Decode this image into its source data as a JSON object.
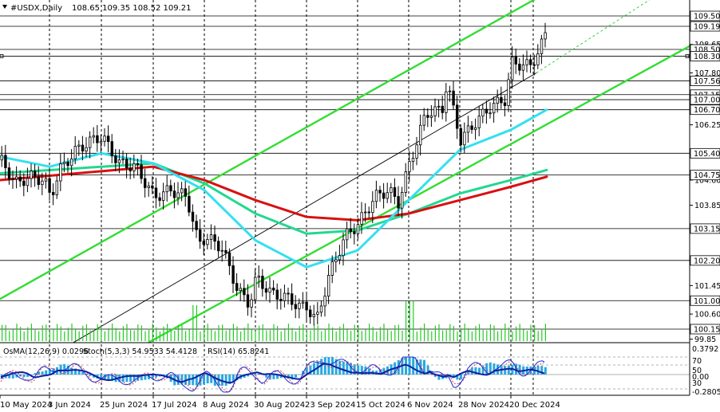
{
  "header": {
    "symbol": "#USDX,Daily",
    "ohlc": "108.65 109.35 108.52 109.21"
  },
  "colors": {
    "candles": "#000000",
    "ma_fast": "#33e0f0",
    "ma_mid": "#22d890",
    "ma_slow": "#d81010",
    "channel": "#33dd33",
    "channel_mid": "#000000",
    "grid": "#000000",
    "osma_hist": "#2aa8e0",
    "stoch_main": "#1a2bd8",
    "stoch_signal": "#e03030",
    "rsi": "#1020a0"
  },
  "chart_data": {
    "type": "candlestick",
    "instrument": "#USDX",
    "timeframe": "Daily",
    "last_ohlc": {
      "open": 108.65,
      "high": 109.35,
      "low": 108.52,
      "close": 109.21
    },
    "ylim": [
      99.85,
      110.1
    ],
    "price_labels": [
      "109.50",
      "109.19",
      "108.50",
      "108.30",
      "107.56",
      "107.15",
      "107.00",
      "106.70",
      "105.40",
      "104.75",
      "103.15",
      "102.20",
      "101.00",
      "100.15"
    ],
    "price_ticks": [
      "108.65",
      "107.80",
      "106.25",
      "104.60",
      "103.85",
      "101.45",
      "100.60",
      "99.85"
    ],
    "date_labels": [
      "10 May 2024",
      "3 Jun 2024",
      "25 Jun 2024",
      "17 Jul 2024",
      "8 Aug 2024",
      "30 Aug 2024",
      "23 Sep 2024",
      "15 Oct 2024",
      "6 Nov 2024",
      "28 Nov 2024",
      "20 Dec 2024"
    ],
    "close_path": [
      [
        "10 May 2024",
        105.2
      ],
      [
        "17 May 2024",
        104.5
      ],
      [
        "24 May 2024",
        104.7
      ],
      [
        "31 May 2024",
        104.6
      ],
      [
        "3 Jun 2024",
        104.1
      ],
      [
        "7 Jun 2024",
        104.9
      ],
      [
        "14 Jun 2024",
        105.5
      ],
      [
        "21 Jun 2024",
        105.8
      ],
      [
        "25 Jun 2024",
        105.9
      ],
      [
        "2 Jul 2024",
        105.1
      ],
      [
        "9 Jul 2024",
        105.0
      ],
      [
        "17 Jul 2024",
        104.1
      ],
      [
        "24 Jul 2024",
        104.3
      ],
      [
        "31 Jul 2024",
        104.1
      ],
      [
        "5 Aug 2024",
        102.7
      ],
      [
        "8 Aug 2024",
        102.9
      ],
      [
        "15 Aug 2024",
        102.6
      ],
      [
        "22 Aug 2024",
        101.3
      ],
      [
        "27 Aug 2024",
        100.9
      ],
      [
        "30 Aug 2024",
        101.7
      ],
      [
        "6 Sep 2024",
        101.2
      ],
      [
        "13 Sep 2024",
        101.1
      ],
      [
        "20 Sep 2024",
        100.8
      ],
      [
        "23 Sep 2024",
        100.8
      ],
      [
        "27 Sep 2024",
        100.4
      ],
      [
        "2 Oct 2024",
        101.7
      ],
      [
        "9 Oct 2024",
        102.9
      ],
      [
        "15 Oct 2024",
        103.3
      ],
      [
        "22 Oct 2024",
        104.1
      ],
      [
        "28 Oct 2024",
        104.3
      ],
      [
        "1 Nov 2024",
        103.9
      ],
      [
        "6 Nov 2024",
        105.1
      ],
      [
        "13 Nov 2024",
        106.6
      ],
      [
        "20 Nov 2024",
        106.7
      ],
      [
        "22 Nov 2024",
        107.5
      ],
      [
        "28 Nov 2024",
        105.8
      ],
      [
        "4 Dec 2024",
        106.3
      ],
      [
        "11 Dec 2024",
        106.8
      ],
      [
        "17 Dec 2024",
        107.0
      ],
      [
        "20 Dec 2024",
        108.1
      ],
      [
        "27 Dec 2024",
        108.0
      ],
      [
        "31 Dec 2024",
        108.5
      ],
      [
        "3 Jan 2025",
        109.2
      ]
    ],
    "ma_slow_path": [
      [
        "10 May 2024",
        104.6
      ],
      [
        "17 Jul 2024",
        105.0
      ],
      [
        "8 Aug 2024",
        104.6
      ],
      [
        "30 Aug 2024",
        104.0
      ],
      [
        "23 Sep 2024",
        103.5
      ],
      [
        "15 Oct 2024",
        103.4
      ],
      [
        "6 Nov 2024",
        103.6
      ],
      [
        "28 Nov 2024",
        104.0
      ],
      [
        "20 Dec 2024",
        104.4
      ],
      [
        "3 Jan 2025",
        104.7
      ]
    ],
    "ma_mid_path": [
      [
        "10 May 2024",
        104.8
      ],
      [
        "17 Jul 2024",
        105.1
      ],
      [
        "8 Aug 2024",
        104.5
      ],
      [
        "30 Aug 2024",
        103.6
      ],
      [
        "23 Sep 2024",
        103.0
      ],
      [
        "15 Oct 2024",
        103.1
      ],
      [
        "6 Nov 2024",
        103.6
      ],
      [
        "28 Nov 2024",
        104.2
      ],
      [
        "20 Dec 2024",
        104.6
      ],
      [
        "3 Jan 2025",
        104.9
      ]
    ],
    "ma_fast_path": [
      [
        "10 May 2024",
        105.3
      ],
      [
        "3 Jun 2024",
        105.0
      ],
      [
        "25 Jun 2024",
        105.4
      ],
      [
        "17 Jul 2024",
        105.1
      ],
      [
        "8 Aug 2024",
        104.3
      ],
      [
        "30 Aug 2024",
        102.8
      ],
      [
        "23 Sep 2024",
        102.0
      ],
      [
        "15 Oct 2024",
        102.5
      ],
      [
        "6 Nov 2024",
        104.0
      ],
      [
        "28 Nov 2024",
        105.5
      ],
      [
        "20 Dec 2024",
        106.1
      ],
      [
        "3 Jan 2025",
        106.7
      ]
    ],
    "indicator_labels": {
      "osma": "OsMA(12,26,9) 0.0296",
      "stoch": "Stoch(5,3,3) 54.9533 54.4128",
      "rsi": "RSI(14) 65.8241"
    },
    "indicator_scale": [
      "0.3792",
      "70",
      "50",
      "0.00",
      "30",
      "-0.2805"
    ]
  }
}
